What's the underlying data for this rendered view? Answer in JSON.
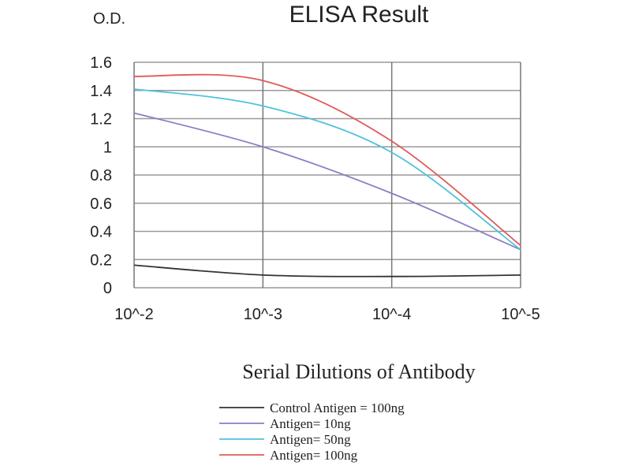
{
  "chart_data": {
    "type": "line",
    "title": "ELISA Result",
    "ylabel": "O.D.",
    "xlabel": "Serial Dilutions of Antibody",
    "categories": [
      "10^-2",
      "10^-3",
      "10^-4",
      "10^-5"
    ],
    "yticks": [
      "0",
      "0.2",
      "0.4",
      "0.6",
      "0.8",
      "1",
      "1.2",
      "1.4",
      "1.6"
    ],
    "ylim": [
      0,
      1.6
    ],
    "grid": true,
    "legend_position": "bottom",
    "series": [
      {
        "name": "Control Antigen = 100ng",
        "color": "#333333",
        "values": [
          0.16,
          0.09,
          0.08,
          0.09
        ]
      },
      {
        "name": "Antigen= 10ng",
        "color": "#8e7cc3",
        "values": [
          1.24,
          1.0,
          0.67,
          0.27
        ]
      },
      {
        "name": "Antigen= 50ng",
        "color": "#4fc3dc",
        "values": [
          1.41,
          1.29,
          0.96,
          0.27
        ]
      },
      {
        "name": "Antigen= 100ng",
        "color": "#e05a5a",
        "values": [
          1.5,
          1.47,
          1.04,
          0.3
        ]
      }
    ]
  }
}
